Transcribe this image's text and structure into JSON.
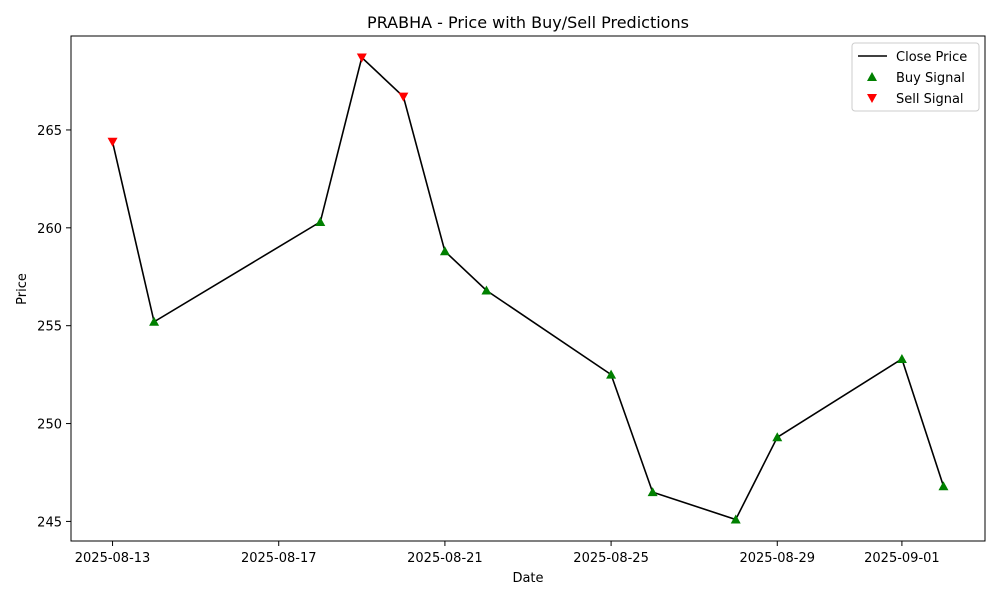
{
  "chart_data": {
    "type": "line",
    "title": "PRABHA - Price with Buy/Sell Predictions",
    "xlabel": "Date",
    "ylabel": "Price",
    "x_ticks": [
      "2025-08-13",
      "2025-08-17",
      "2025-08-21",
      "2025-08-25",
      "2025-08-29",
      "2025-09-01"
    ],
    "y_ticks": [
      245,
      250,
      255,
      260,
      265
    ],
    "xlim": [
      "2025-08-12",
      "2025-09-03"
    ],
    "ylim": [
      244,
      269.8
    ],
    "grid": false,
    "legend_position": "top-right",
    "series": [
      {
        "name": "Close Price",
        "kind": "line",
        "color": "#000000",
        "points": [
          {
            "x": "2025-08-13",
            "y": 264.4
          },
          {
            "x": "2025-08-14",
            "y": 255.2
          },
          {
            "x": "2025-08-18",
            "y": 260.3
          },
          {
            "x": "2025-08-19",
            "y": 268.7
          },
          {
            "x": "2025-08-20",
            "y": 266.7
          },
          {
            "x": "2025-08-21",
            "y": 258.8
          },
          {
            "x": "2025-08-22",
            "y": 256.8
          },
          {
            "x": "2025-08-25",
            "y": 252.5
          },
          {
            "x": "2025-08-26",
            "y": 246.5
          },
          {
            "x": "2025-08-28",
            "y": 245.1
          },
          {
            "x": "2025-08-29",
            "y": 249.3
          },
          {
            "x": "2025-09-01",
            "y": 253.3
          },
          {
            "x": "2025-09-02",
            "y": 246.8
          }
        ]
      },
      {
        "name": "Buy Signal",
        "kind": "scatter",
        "marker": "triangle-up",
        "color": "#008000",
        "points": [
          {
            "x": "2025-08-14",
            "y": 255.2
          },
          {
            "x": "2025-08-18",
            "y": 260.3
          },
          {
            "x": "2025-08-21",
            "y": 258.8
          },
          {
            "x": "2025-08-22",
            "y": 256.8
          },
          {
            "x": "2025-08-25",
            "y": 252.5
          },
          {
            "x": "2025-08-26",
            "y": 246.5
          },
          {
            "x": "2025-08-28",
            "y": 245.1
          },
          {
            "x": "2025-08-29",
            "y": 249.3
          },
          {
            "x": "2025-09-01",
            "y": 253.3
          },
          {
            "x": "2025-09-02",
            "y": 246.8
          }
        ]
      },
      {
        "name": "Sell Signal",
        "kind": "scatter",
        "marker": "triangle-down",
        "color": "#ff0000",
        "points": [
          {
            "x": "2025-08-13",
            "y": 264.4
          },
          {
            "x": "2025-08-19",
            "y": 268.7
          },
          {
            "x": "2025-08-20",
            "y": 266.7
          }
        ]
      }
    ]
  }
}
